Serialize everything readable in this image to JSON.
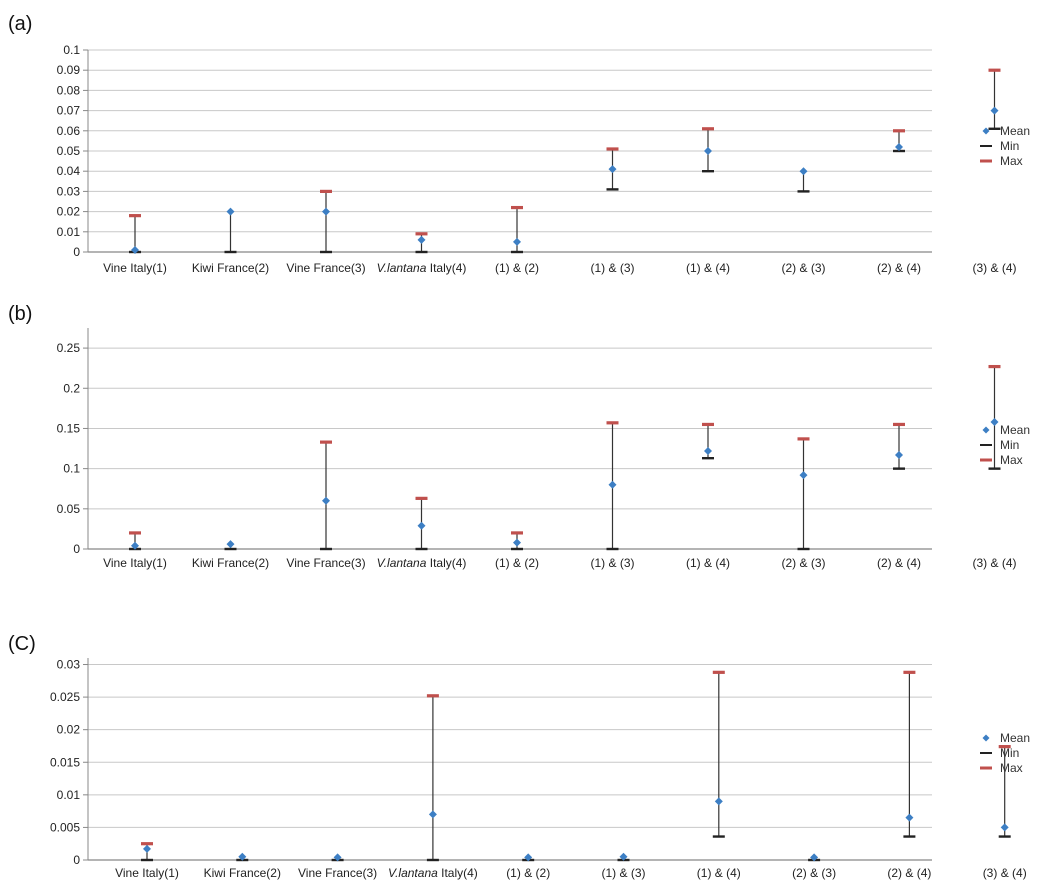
{
  "colors": {
    "mean": "#3d7fc4",
    "min": "#222222",
    "max": "#c0504d",
    "grid": "#c8c8c8",
    "axis": "#888888"
  },
  "chart_data": [
    {
      "type": "scatter",
      "panel_label": "(a)",
      "categories": [
        "Vine Italy(1)",
        "Kiwi France(2)",
        "Vine France(3)",
        "V.lantana Italy(4)",
        "(1) & (2)",
        "(1) & (3)",
        "(1) & (4)",
        "(2) & (3)",
        "(2) & (4)",
        "(3) & (4)"
      ],
      "series": [
        {
          "name": "Mean",
          "values": [
            0.001,
            0.02,
            0.02,
            0.006,
            0.005,
            0.041,
            0.05,
            0.04,
            0.052,
            0.07
          ]
        },
        {
          "name": "Min",
          "values": [
            0,
            0,
            0,
            0,
            0,
            0.031,
            0.04,
            0.03,
            0.05,
            0.061
          ]
        },
        {
          "name": "Max",
          "values": [
            0.018,
            null,
            0.03,
            0.009,
            0.022,
            0.051,
            0.061,
            null,
            0.06,
            0.09
          ]
        }
      ],
      "yticks": [
        "0",
        "0.01",
        "0.02",
        "0.03",
        "0.04",
        "0.05",
        "0.06",
        "0.07",
        "0.08",
        "0.09",
        "0.1"
      ],
      "ylim": [
        0,
        0.1
      ],
      "grid": true,
      "legend_position": "right"
    },
    {
      "type": "scatter",
      "panel_label": "(b)",
      "categories": [
        "Vine Italy(1)",
        "Kiwi France(2)",
        "Vine France(3)",
        "V.lantana Italy(4)",
        "(1) & (2)",
        "(1) & (3)",
        "(1) & (4)",
        "(2) & (3)",
        "(2) & (4)",
        "(3) & (4)"
      ],
      "series": [
        {
          "name": "Mean",
          "values": [
            0.004,
            0.006,
            0.06,
            0.029,
            0.008,
            0.08,
            0.122,
            0.092,
            0.117,
            0.158
          ]
        },
        {
          "name": "Min",
          "values": [
            0,
            0,
            0,
            0,
            0,
            0,
            0.113,
            0,
            0.1,
            0.1
          ]
        },
        {
          "name": "Max",
          "values": [
            0.02,
            null,
            0.133,
            0.063,
            0.02,
            0.157,
            0.155,
            0.137,
            0.155,
            0.227
          ]
        }
      ],
      "yticks": [
        "0",
        "0.05",
        "0.1",
        "0.15",
        "0.2",
        "0.25"
      ],
      "ylim": [
        0,
        0.275
      ],
      "grid": true,
      "legend_position": "right"
    },
    {
      "type": "scatter",
      "panel_label": "(C)",
      "categories": [
        "Vine Italy(1)",
        "Kiwi France(2)",
        "Vine France(3)",
        "V.lantana Italy(4)",
        "(1) & (2)",
        "(1) & (3)",
        "(1) & (4)",
        "(2) & (3)",
        "(2) & (4)",
        "(3) & (4)"
      ],
      "series": [
        {
          "name": "Mean",
          "values": [
            0.0017,
            0.0005,
            0.0004,
            0.007,
            0.0004,
            0.0005,
            0.009,
            0.0004,
            0.0065,
            0.005
          ]
        },
        {
          "name": "Min",
          "values": [
            0,
            0,
            0,
            0,
            0,
            0,
            0.0036,
            0,
            0.0036,
            0.0036
          ]
        },
        {
          "name": "Max",
          "values": [
            0.0025,
            null,
            null,
            0.0252,
            null,
            null,
            0.0288,
            null,
            0.0288,
            0.0174
          ]
        }
      ],
      "yticks": [
        "0",
        "0.005",
        "0.01",
        "0.015",
        "0.02",
        "0.025",
        "0.03"
      ],
      "ylim": [
        0,
        0.031
      ],
      "grid": true,
      "legend_position": "right"
    }
  ]
}
